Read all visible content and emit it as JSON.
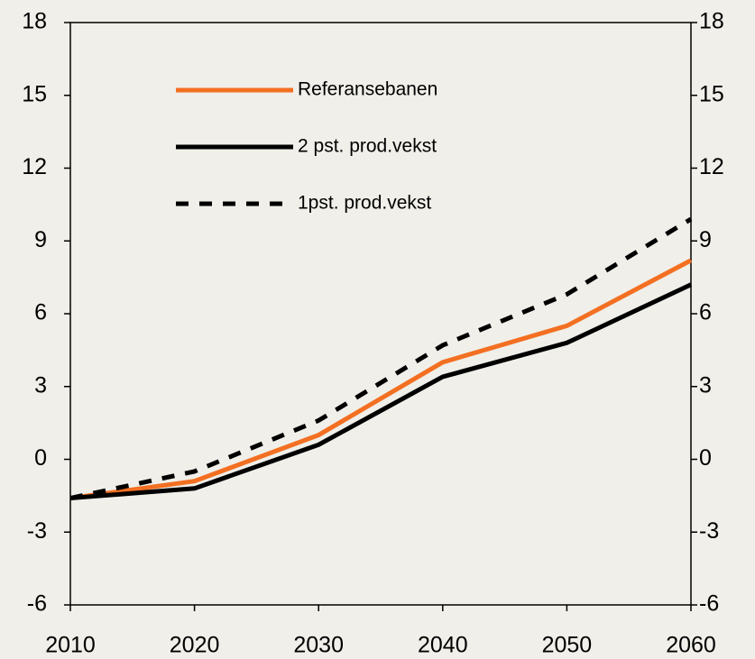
{
  "chart_data": {
    "type": "line",
    "x": [
      2010,
      2020,
      2030,
      2040,
      2050,
      2060
    ],
    "xlim": [
      2010,
      2060
    ],
    "xticks": [
      2010,
      2020,
      2030,
      2040,
      2050,
      2060
    ],
    "ylim": [
      -6,
      18
    ],
    "yticks": [
      -6,
      -3,
      0,
      3,
      6,
      9,
      12,
      15,
      18
    ],
    "y2lim": [
      -6,
      18
    ],
    "y2ticks": [
      -6,
      -3,
      0,
      3,
      6,
      9,
      12,
      15,
      18
    ],
    "legend": "upper left",
    "series": [
      {
        "name": "Referansebanen",
        "color": "#f36f21",
        "dash": "solid",
        "values": [
          -1.6,
          -0.9,
          1.0,
          4.0,
          5.5,
          8.2
        ]
      },
      {
        "name": "2 pst. prod.vekst",
        "color": "#000000",
        "dash": "solid",
        "values": [
          -1.6,
          -1.2,
          0.6,
          3.4,
          4.8,
          7.2
        ]
      },
      {
        "name": "1pst. prod.vekst",
        "color": "#000000",
        "dash": "dashed",
        "values": [
          -1.6,
          -0.5,
          1.6,
          4.7,
          6.8,
          9.9
        ]
      }
    ]
  }
}
